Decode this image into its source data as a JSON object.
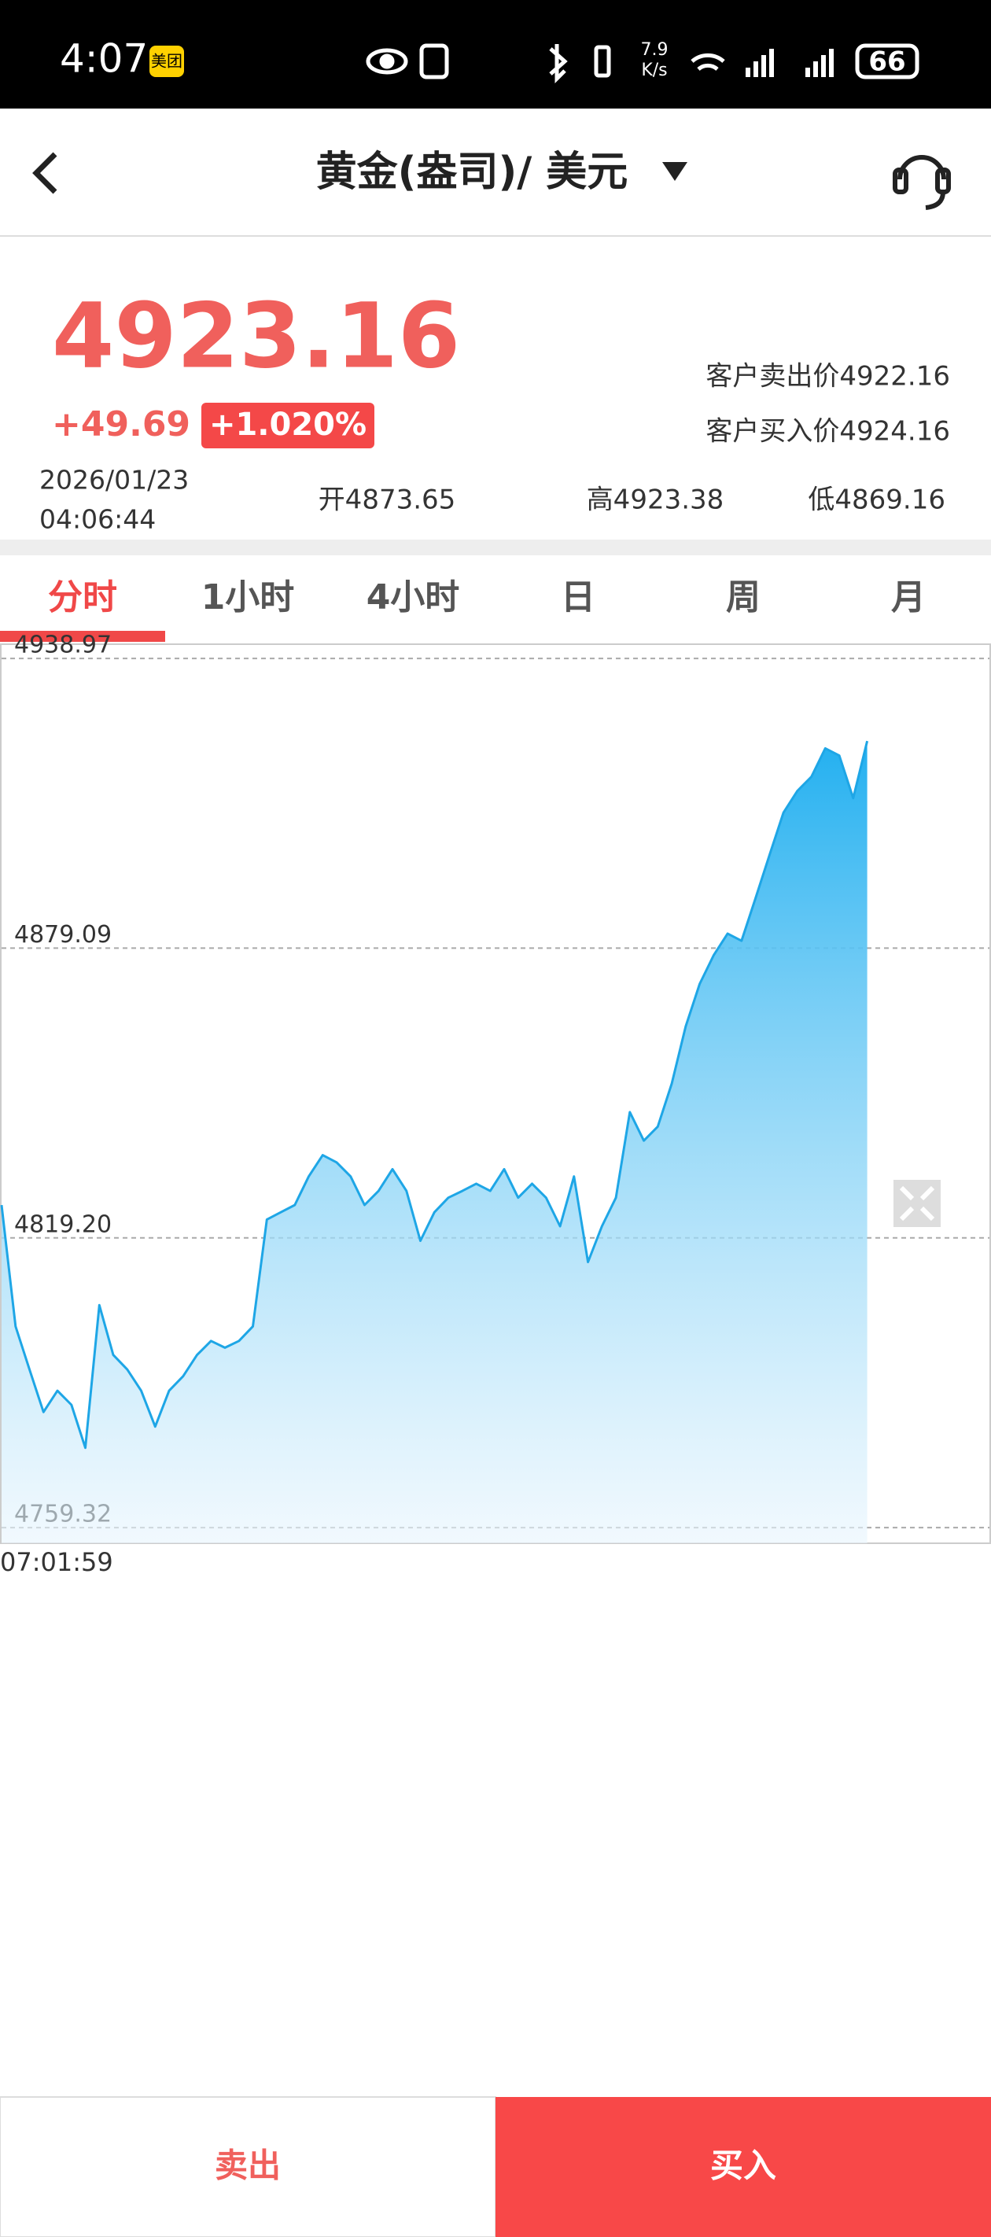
{
  "status_bar": {
    "time": "4:07",
    "badge": "美团",
    "speed_top": "7.9",
    "speed_unit": "K/s",
    "battery": "66"
  },
  "header": {
    "title": "黄金(盎司)/ 美元"
  },
  "quote": {
    "price": "4923.16",
    "change": "+49.69",
    "change_pct": "+1.020%",
    "sell_price": "客户卖出价4922.16",
    "buy_price": "客户买入价4924.16",
    "date": "2026/01/23",
    "time": "04:06:44",
    "open": "开4873.65",
    "high": "高4923.38",
    "low": "低4869.16"
  },
  "tabs": [
    "分时",
    "1小时",
    "4小时",
    "日",
    "周",
    "月"
  ],
  "chart_data": {
    "type": "line",
    "categories": [
      "07:01:59",
      null,
      null,
      null,
      null,
      null,
      null,
      null,
      null,
      null,
      null,
      null,
      null,
      null,
      null,
      null,
      null,
      null,
      null,
      null,
      null,
      null,
      null,
      null,
      null,
      null,
      null,
      null,
      null,
      null,
      null,
      null,
      null,
      null,
      null,
      null,
      null,
      null,
      null,
      null,
      null,
      null,
      null,
      null,
      null,
      null,
      null,
      null,
      null,
      null,
      null,
      null,
      null,
      null,
      null,
      null,
      null,
      null,
      null,
      null,
      null,
      null,
      null
    ],
    "values": [
      4825.97,
      4800.9,
      4792.0,
      4783.2,
      4787.6,
      4784.7,
      4775.8,
      4805.3,
      4795.0,
      4792.0,
      4787.6,
      4780.2,
      4787.6,
      4790.6,
      4795.0,
      4797.9,
      4796.5,
      4797.9,
      4800.9,
      4823.0,
      4824.5,
      4826.0,
      4831.9,
      4836.3,
      4834.8,
      4831.9,
      4826.0,
      4828.9,
      4833.4,
      4828.9,
      4818.6,
      4824.5,
      4827.5,
      4828.9,
      4830.4,
      4828.9,
      4833.4,
      4827.5,
      4830.4,
      4827.5,
      4821.6,
      4831.9,
      4814.2,
      4821.6,
      4827.5,
      4845.2,
      4839.3,
      4842.2,
      4851.1,
      4862.9,
      4871.7,
      4877.6,
      4882.1,
      4880.6,
      4889.4,
      4898.3,
      4907.1,
      4911.6,
      4914.5,
      4920.4,
      4918.9,
      4910.1,
      4921.9
    ],
    "color": "#1ea6e6",
    "ylim": [
      4756.08,
      4941.92
    ],
    "yticks": [
      {
        "value": 4759.32,
        "label": "4759.32"
      },
      {
        "value": 4819.2,
        "label": "4819.20"
      },
      {
        "value": 4879.09,
        "label": "4879.09"
      },
      {
        "value": 4938.97,
        "label": "4938.97"
      }
    ],
    "grid": true
  },
  "actions": {
    "sell": "卖出",
    "buy": "买入"
  }
}
